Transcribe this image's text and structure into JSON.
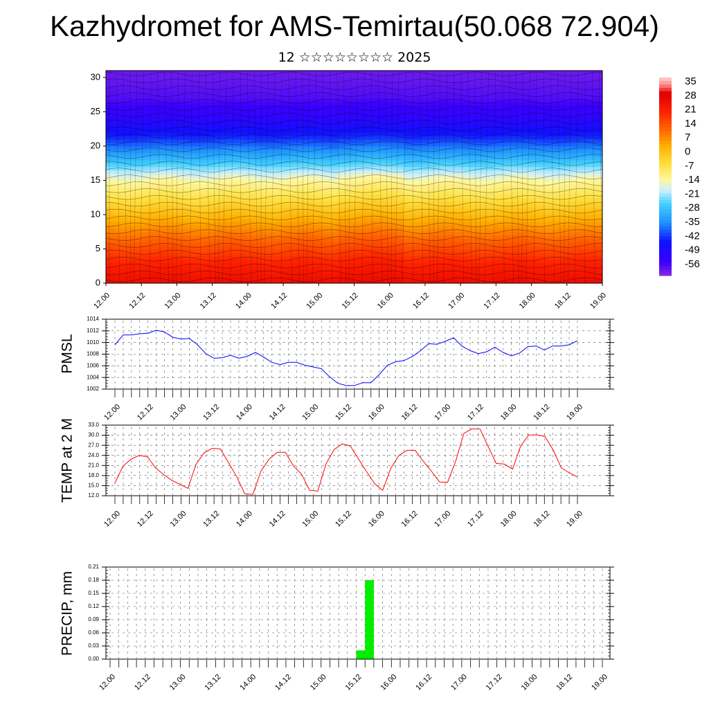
{
  "title": "Kazhydromet for AMS-Temirtau(50.068 72.904)",
  "subtitle": "12 ☆☆☆☆☆☆☆☆ 2025",
  "time_ticks": [
    "12.00",
    "12.12",
    "13.00",
    "13.12",
    "14.00",
    "14.12",
    "15.00",
    "15.12",
    "16.00",
    "16.12",
    "17.00",
    "17.12",
    "18.00",
    "18.12",
    "19.00"
  ],
  "colors": {
    "pmsl": "#0000ff",
    "temp": "#ff0000",
    "precip": "#00ee00"
  },
  "chart_data": [
    {
      "type": "heatmap",
      "title": "",
      "xlabel": "",
      "ylabel": "",
      "y_ticks": [
        "0",
        "5",
        "10",
        "15",
        "20",
        "25",
        "30"
      ],
      "ylim": [
        0,
        31
      ],
      "colorbar_labels": [
        "35",
        "28",
        "21",
        "14",
        "7",
        "0",
        "-7",
        "-14",
        "-21",
        "-28",
        "-35",
        "-42",
        "-49",
        "-56"
      ],
      "colorbar_range": [
        -63,
        42
      ],
      "temperature_profile": {
        "levels": [
          0,
          3,
          6,
          9,
          12,
          15,
          18,
          21,
          24,
          27,
          30
        ],
        "values": [
          30,
          24,
          16,
          7,
          -3,
          -12,
          -28,
          -42,
          -52,
          -58,
          -60
        ]
      }
    },
    {
      "type": "line",
      "ylabel": "PMSL",
      "ylim": [
        1002,
        1014
      ],
      "y_ticks": [
        "1014",
        "1012",
        "1010",
        "1008",
        "1006",
        "1004",
        "1002"
      ],
      "series": [
        {
          "values": [
            1009.6,
            1011.3,
            1011.3,
            1011.5,
            1011.6,
            1012.1,
            1011.8,
            1010.9,
            1010.6,
            1010.7,
            1009.6,
            1008.1,
            1007.3,
            1007.4,
            1007.8,
            1007.3,
            1007.6,
            1008.3,
            1007.5,
            1006.6,
            1006.2,
            1006.6,
            1006.6,
            1006.1,
            1005.8,
            1005.5,
            1004.1,
            1003.0,
            1002.6,
            1002.6,
            1003.1,
            1003.1,
            1004.5,
            1006.1,
            1006.7,
            1006.9,
            1007.6,
            1008.6,
            1009.8,
            1009.7,
            1010.2,
            1010.8,
            1009.4,
            1008.6,
            1008.1,
            1008.4,
            1009.2,
            1008.3,
            1007.7,
            1008.2,
            1009.3,
            1009.4,
            1008.7,
            1009.4,
            1009.4,
            1009.6,
            1010.3
          ]
        }
      ]
    },
    {
      "type": "line",
      "ylabel": "TEMP at 2 M",
      "ylim": [
        12.0,
        33.0
      ],
      "y_ticks": [
        "33.0",
        "30.0",
        "27.0",
        "24.0",
        "21.0",
        "18.0",
        "15.0",
        "12.0"
      ],
      "series": [
        {
          "values": [
            15.8,
            20.8,
            22.9,
            24.0,
            23.6,
            20.3,
            18.3,
            16.6,
            15.4,
            14.2,
            21.4,
            24.8,
            26.1,
            25.9,
            21.8,
            17.7,
            12.6,
            12.4,
            19.3,
            22.9,
            24.9,
            24.9,
            20.9,
            18.4,
            13.6,
            13.4,
            21.4,
            25.7,
            27.4,
            26.8,
            23.0,
            19.2,
            15.6,
            13.6,
            20.2,
            24.0,
            25.5,
            25.5,
            22.3,
            19.3,
            16.1,
            16.0,
            22.3,
            30.5,
            31.9,
            31.8,
            26.6,
            21.6,
            21.4,
            19.9,
            26.8,
            30.1,
            30.1,
            29.6,
            25.7,
            20.3,
            18.8,
            17.6
          ]
        }
      ]
    },
    {
      "type": "bar",
      "ylabel": "PRECIP, mm",
      "ylim": [
        0.0,
        0.21
      ],
      "y_ticks": [
        "0.21",
        "0.18",
        "0.15",
        "0.12",
        "0.09",
        "0.06",
        "0.03",
        "0.00"
      ],
      "bars": [
        {
          "t": 15.5,
          "value": 0.02
        },
        {
          "t": 15.625,
          "value": 0.18
        }
      ]
    }
  ]
}
